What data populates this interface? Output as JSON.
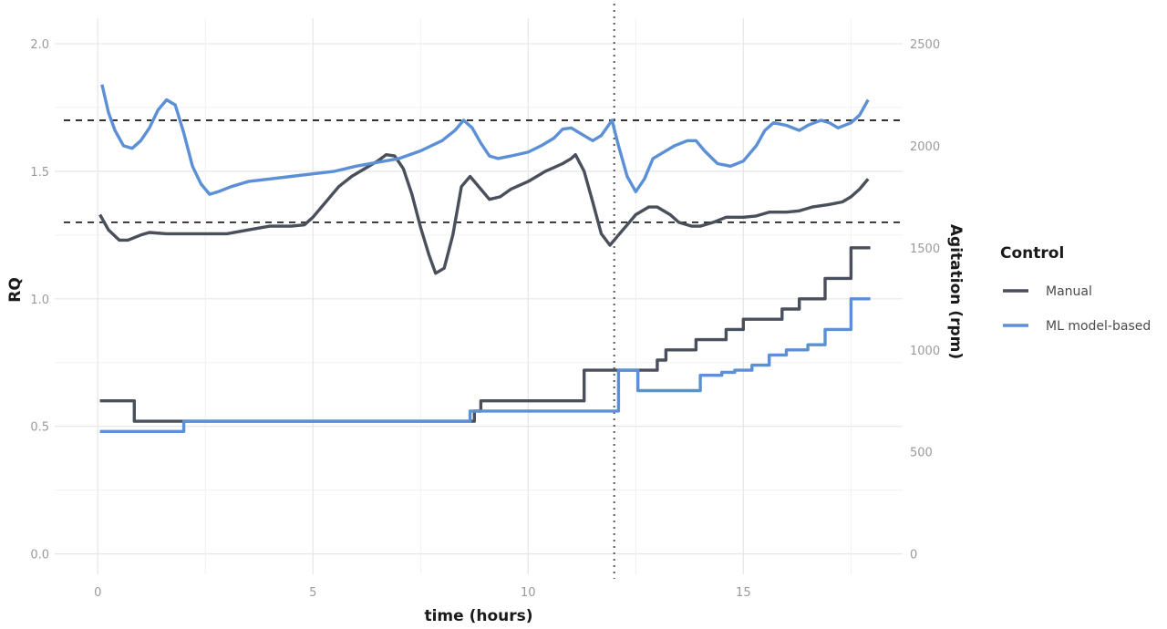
{
  "chart_data": {
    "type": "line",
    "xlabel": "time (hours)",
    "ylabel_left": "RQ",
    "ylabel_right": "Agitation (rpm)",
    "xlim": [
      -1,
      18.7
    ],
    "ylim_left": [
      -0.08,
      2.1
    ],
    "ylim_right": [
      -100,
      2625
    ],
    "x_ticks": [
      0,
      5,
      10,
      15
    ],
    "y_left_ticks": [
      0.0,
      0.5,
      1.0,
      1.5,
      2.0
    ],
    "y_left_tick_labels": [
      "0.0",
      "0.5",
      "1.0",
      "1.5",
      "2.0"
    ],
    "y_right_ticks": [
      0,
      500,
      1000,
      1500,
      2000,
      2500
    ],
    "y_right_tick_labels": [
      "0",
      "500",
      "1000",
      "1500",
      "2000",
      "2500"
    ],
    "grid": true,
    "reference_lines": {
      "horizontal_dashed_rq": [
        1.3,
        1.7
      ],
      "vertical_dotted_time": 12.0
    },
    "legend": {
      "title": "Control",
      "placement": "right",
      "entries": [
        {
          "label": "Manual",
          "color": "#4a4f5c"
        },
        {
          "label": "ML model-based",
          "color": "#5b8fd6"
        }
      ]
    },
    "series": [
      {
        "name": "Manual",
        "axis": "left",
        "kind": "rq",
        "color": "#4a4f5c",
        "points": [
          [
            0.05,
            1.33
          ],
          [
            0.25,
            1.27
          ],
          [
            0.5,
            1.23
          ],
          [
            0.7,
            1.23
          ],
          [
            1.0,
            1.25
          ],
          [
            1.2,
            1.26
          ],
          [
            1.6,
            1.255
          ],
          [
            2.0,
            1.255
          ],
          [
            2.5,
            1.255
          ],
          [
            3.0,
            1.255
          ],
          [
            3.5,
            1.27
          ],
          [
            4.0,
            1.285
          ],
          [
            4.5,
            1.285
          ],
          [
            4.8,
            1.29
          ],
          [
            5.0,
            1.32
          ],
          [
            5.3,
            1.38
          ],
          [
            5.6,
            1.44
          ],
          [
            5.9,
            1.48
          ],
          [
            6.2,
            1.51
          ],
          [
            6.5,
            1.54
          ],
          [
            6.7,
            1.565
          ],
          [
            6.9,
            1.56
          ],
          [
            7.1,
            1.51
          ],
          [
            7.3,
            1.41
          ],
          [
            7.5,
            1.28
          ],
          [
            7.7,
            1.17
          ],
          [
            7.85,
            1.1
          ],
          [
            8.05,
            1.12
          ],
          [
            8.25,
            1.25
          ],
          [
            8.45,
            1.44
          ],
          [
            8.65,
            1.48
          ],
          [
            8.9,
            1.43
          ],
          [
            9.1,
            1.39
          ],
          [
            9.35,
            1.4
          ],
          [
            9.6,
            1.43
          ],
          [
            10.0,
            1.46
          ],
          [
            10.4,
            1.5
          ],
          [
            10.8,
            1.53
          ],
          [
            11.0,
            1.55
          ],
          [
            11.1,
            1.565
          ],
          [
            11.3,
            1.5
          ],
          [
            11.5,
            1.38
          ],
          [
            11.7,
            1.255
          ],
          [
            11.9,
            1.21
          ],
          [
            12.1,
            1.25
          ],
          [
            12.3,
            1.29
          ],
          [
            12.5,
            1.33
          ],
          [
            12.8,
            1.36
          ],
          [
            13.0,
            1.36
          ],
          [
            13.3,
            1.33
          ],
          [
            13.5,
            1.3
          ],
          [
            13.8,
            1.285
          ],
          [
            14.0,
            1.285
          ],
          [
            14.3,
            1.3
          ],
          [
            14.6,
            1.32
          ],
          [
            15.0,
            1.32
          ],
          [
            15.3,
            1.325
          ],
          [
            15.6,
            1.34
          ],
          [
            16.0,
            1.34
          ],
          [
            16.3,
            1.345
          ],
          [
            16.6,
            1.36
          ],
          [
            17.0,
            1.37
          ],
          [
            17.3,
            1.38
          ],
          [
            17.5,
            1.4
          ],
          [
            17.7,
            1.43
          ],
          [
            17.9,
            1.47
          ]
        ]
      },
      {
        "name": "ML model-based",
        "axis": "left",
        "kind": "rq",
        "color": "#5b8fd6",
        "points": [
          [
            0.1,
            1.84
          ],
          [
            0.25,
            1.73
          ],
          [
            0.4,
            1.66
          ],
          [
            0.6,
            1.6
          ],
          [
            0.8,
            1.59
          ],
          [
            1.0,
            1.62
          ],
          [
            1.2,
            1.67
          ],
          [
            1.4,
            1.74
          ],
          [
            1.6,
            1.78
          ],
          [
            1.8,
            1.76
          ],
          [
            2.0,
            1.65
          ],
          [
            2.2,
            1.52
          ],
          [
            2.4,
            1.45
          ],
          [
            2.6,
            1.41
          ],
          [
            2.8,
            1.42
          ],
          [
            3.1,
            1.44
          ],
          [
            3.5,
            1.46
          ],
          [
            4.0,
            1.47
          ],
          [
            4.5,
            1.48
          ],
          [
            5.0,
            1.49
          ],
          [
            5.5,
            1.5
          ],
          [
            6.0,
            1.52
          ],
          [
            6.5,
            1.535
          ],
          [
            7.0,
            1.55
          ],
          [
            7.5,
            1.58
          ],
          [
            8.0,
            1.62
          ],
          [
            8.3,
            1.66
          ],
          [
            8.5,
            1.7
          ],
          [
            8.7,
            1.67
          ],
          [
            8.9,
            1.61
          ],
          [
            9.1,
            1.56
          ],
          [
            9.3,
            1.55
          ],
          [
            9.6,
            1.56
          ],
          [
            10.0,
            1.575
          ],
          [
            10.3,
            1.6
          ],
          [
            10.6,
            1.63
          ],
          [
            10.8,
            1.665
          ],
          [
            11.0,
            1.67
          ],
          [
            11.2,
            1.65
          ],
          [
            11.5,
            1.62
          ],
          [
            11.7,
            1.64
          ],
          [
            11.95,
            1.7
          ],
          [
            12.1,
            1.6
          ],
          [
            12.3,
            1.48
          ],
          [
            12.5,
            1.42
          ],
          [
            12.7,
            1.47
          ],
          [
            12.9,
            1.55
          ],
          [
            13.1,
            1.57
          ],
          [
            13.4,
            1.6
          ],
          [
            13.7,
            1.62
          ],
          [
            13.9,
            1.62
          ],
          [
            14.1,
            1.58
          ],
          [
            14.4,
            1.53
          ],
          [
            14.7,
            1.52
          ],
          [
            15.0,
            1.54
          ],
          [
            15.3,
            1.6
          ],
          [
            15.5,
            1.66
          ],
          [
            15.7,
            1.69
          ],
          [
            16.0,
            1.68
          ],
          [
            16.3,
            1.66
          ],
          [
            16.5,
            1.68
          ],
          [
            16.8,
            1.7
          ],
          [
            17.0,
            1.69
          ],
          [
            17.2,
            1.67
          ],
          [
            17.5,
            1.69
          ],
          [
            17.7,
            1.72
          ],
          [
            17.9,
            1.78
          ]
        ]
      },
      {
        "name": "Manual",
        "axis": "right",
        "kind": "agitation",
        "color": "#4a4f5c",
        "steps": [
          [
            0.05,
            750
          ],
          [
            0.85,
            650
          ],
          [
            2.0,
            650
          ],
          [
            8.6,
            650
          ],
          [
            8.75,
            700
          ],
          [
            8.9,
            750
          ],
          [
            11.3,
            900
          ],
          [
            12.5,
            900
          ],
          [
            12.8,
            900
          ],
          [
            13.0,
            950
          ],
          [
            13.2,
            1000
          ],
          [
            13.9,
            1050
          ],
          [
            14.6,
            1100
          ],
          [
            15.0,
            1150
          ],
          [
            15.9,
            1200
          ],
          [
            16.3,
            1250
          ],
          [
            16.9,
            1350
          ],
          [
            17.5,
            1500
          ],
          [
            17.95,
            1500
          ]
        ]
      },
      {
        "name": "ML model-based",
        "axis": "right",
        "kind": "agitation",
        "color": "#5b8fd6",
        "steps": [
          [
            0.05,
            600
          ],
          [
            2.0,
            650
          ],
          [
            8.5,
            650
          ],
          [
            8.65,
            700
          ],
          [
            12.1,
            900
          ],
          [
            12.55,
            800
          ],
          [
            14.0,
            875
          ],
          [
            14.5,
            890
          ],
          [
            14.8,
            900
          ],
          [
            15.2,
            925
          ],
          [
            15.6,
            975
          ],
          [
            16.0,
            1000
          ],
          [
            16.5,
            1025
          ],
          [
            16.9,
            1100
          ],
          [
            17.5,
            1250
          ],
          [
            17.95,
            1250
          ]
        ]
      }
    ]
  }
}
